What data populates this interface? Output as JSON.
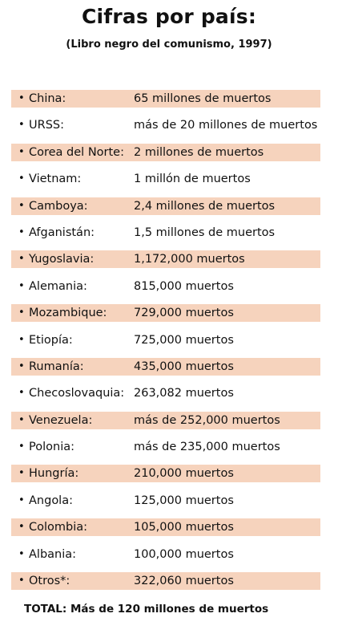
{
  "header": {
    "title": "Cifras por país:",
    "subtitle": "(Libro negro del comunismo, 1997)"
  },
  "bullet_glyph": "•",
  "shade_color": "#f6d3bd",
  "rows": [
    {
      "country": "China:",
      "deaths": "65 millones de muertos"
    },
    {
      "country": "URSS:",
      "deaths": "más de 20 millones de muertos"
    },
    {
      "country": "Corea del Norte:",
      "deaths": "2 millones de muertos"
    },
    {
      "country": "Vietnam:",
      "deaths": "1 millón de muertos"
    },
    {
      "country": "Camboya:",
      "deaths": "2,4 millones de muertos"
    },
    {
      "country": "Afganistán:",
      "deaths": "1,5 millones de muertos"
    },
    {
      "country": "Yugoslavia:",
      "deaths": "1,172,000 muertos"
    },
    {
      "country": "Alemania:",
      "deaths": "815,000 muertos"
    },
    {
      "country": "Mozambique:",
      "deaths": "729,000 muertos"
    },
    {
      "country": "Etiopía:",
      "deaths": "725,000 muertos"
    },
    {
      "country": "Rumanía:",
      "deaths": "435,000 muertos"
    },
    {
      "country": "Checoslovaquia:",
      "deaths": "263,082 muertos"
    },
    {
      "country": "Venezuela:",
      "deaths": "más de 252,000 muertos"
    },
    {
      "country": "Polonia:",
      "deaths": "más de 235,000 muertos"
    },
    {
      "country": "Hungría:",
      "deaths": "210,000 muertos"
    },
    {
      "country": "Angola:",
      "deaths": "125,000 muertos"
    },
    {
      "country": "Colombia:",
      "deaths": "105,000 muertos"
    },
    {
      "country": "Albania:",
      "deaths": "100,000 muertos"
    },
    {
      "country": "Otros*:",
      "deaths": "322,060 muertos"
    }
  ],
  "footer": {
    "total": "TOTAL: Más de 120 millones de muertos"
  }
}
